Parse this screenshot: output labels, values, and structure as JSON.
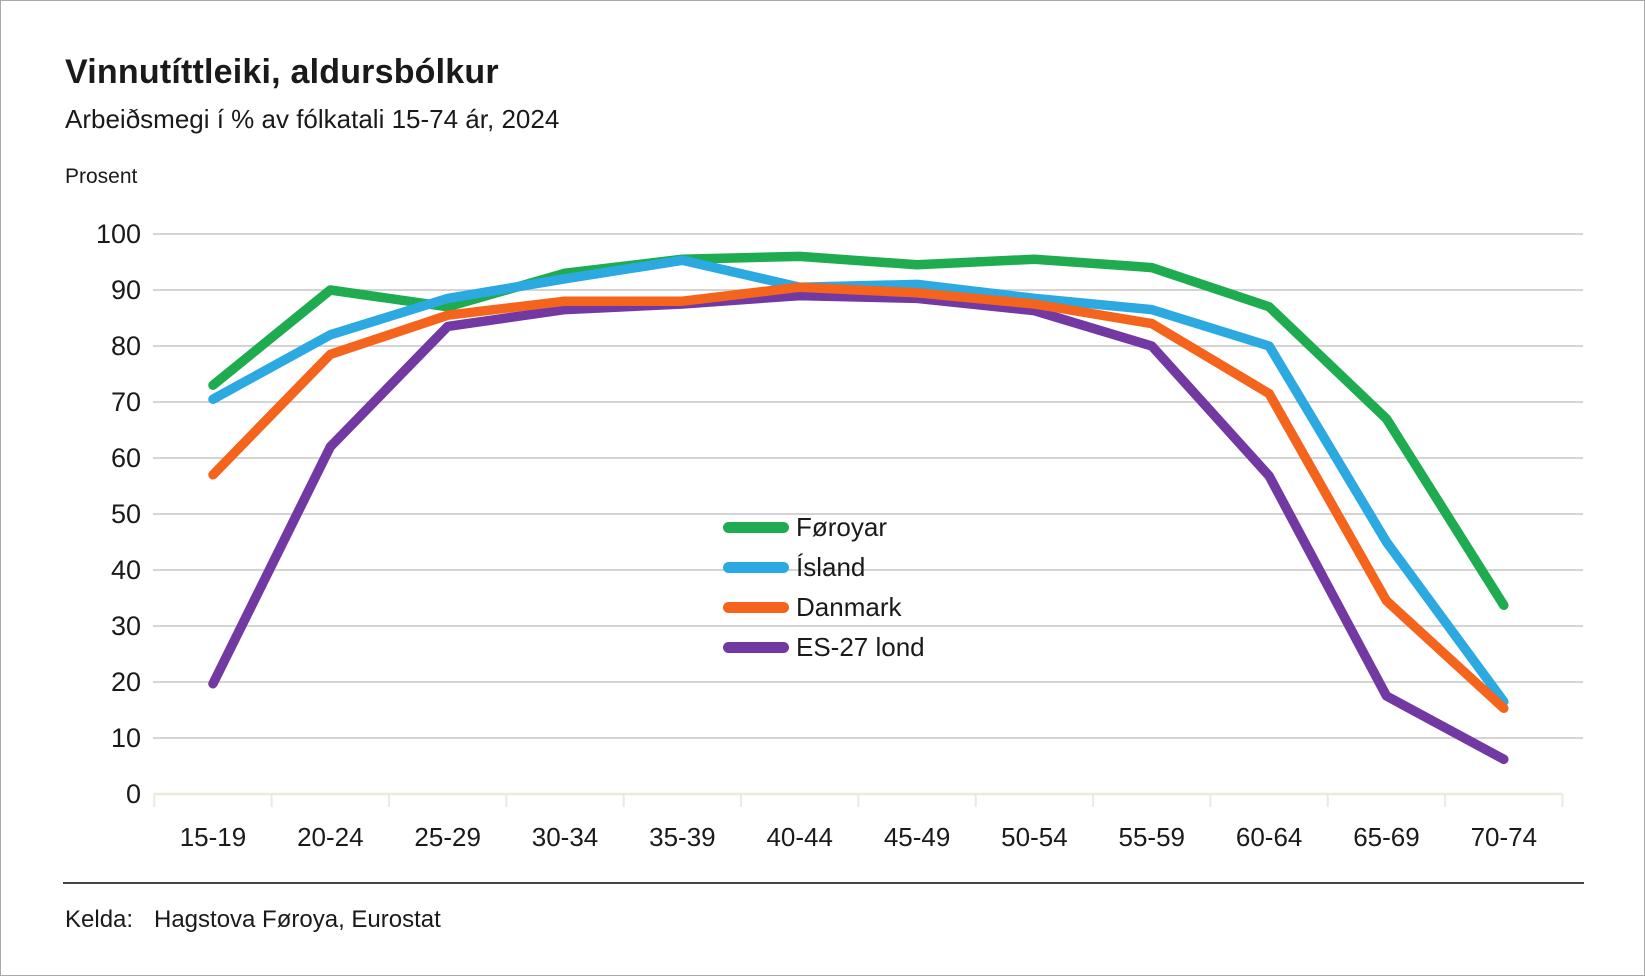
{
  "header": {
    "title": "Vinnutíttleiki, aldursbólkur",
    "subtitle": "Arbeiðsmegi í % av fólkatali 15-74 ár, 2024"
  },
  "chart_data": {
    "type": "line",
    "title": "Vinnutíttleiki, aldursbólkur",
    "subtitle": "Arbeiðsmegi í % av fólkatali 15-74 ár, 2024",
    "ylabel": "Prosent",
    "xlabel": "",
    "ylim": [
      0,
      100
    ],
    "yticks": [
      0,
      10,
      20,
      30,
      40,
      50,
      60,
      70,
      80,
      90,
      100
    ],
    "grid": "horizontal",
    "legend_position": "center-right",
    "categories": [
      "15-19",
      "20-24",
      "25-29",
      "30-34",
      "35-39",
      "40-44",
      "45-49",
      "50-54",
      "55-59",
      "60-64",
      "65-69",
      "70-74"
    ],
    "series": [
      {
        "name": "Føroyar",
        "color": "#1FAC51",
        "values": [
          73,
          90,
          87,
          93,
          95.5,
          96,
          94.5,
          95.5,
          94,
          87,
          67,
          33.7
        ]
      },
      {
        "name": "Ísland",
        "color": "#2CA9E1",
        "values": [
          70.5,
          82,
          88.5,
          92,
          95.3,
          90.5,
          91,
          88.5,
          86.5,
          80,
          45,
          16.5
        ]
      },
      {
        "name": "Danmark",
        "color": "#F4641D",
        "values": [
          57,
          78.5,
          85.5,
          88,
          88,
          90.5,
          89.5,
          87.5,
          84,
          71.5,
          34.5,
          15.3
        ]
      },
      {
        "name": "ES-27 lond",
        "color": "#7239A2",
        "values": [
          19.7,
          62,
          83.5,
          86.5,
          87.5,
          89,
          88.5,
          86.3,
          80,
          56.8,
          17.5,
          6.2
        ]
      }
    ],
    "draw_order": [
      0,
      1,
      3,
      2
    ],
    "line_width": 9.5,
    "gridline_color": "#C6C6C6",
    "baseline_color": "#EDE9DC"
  },
  "source": {
    "label": "Kelda:",
    "value": "Hagstova Føroya, Eurostat"
  }
}
